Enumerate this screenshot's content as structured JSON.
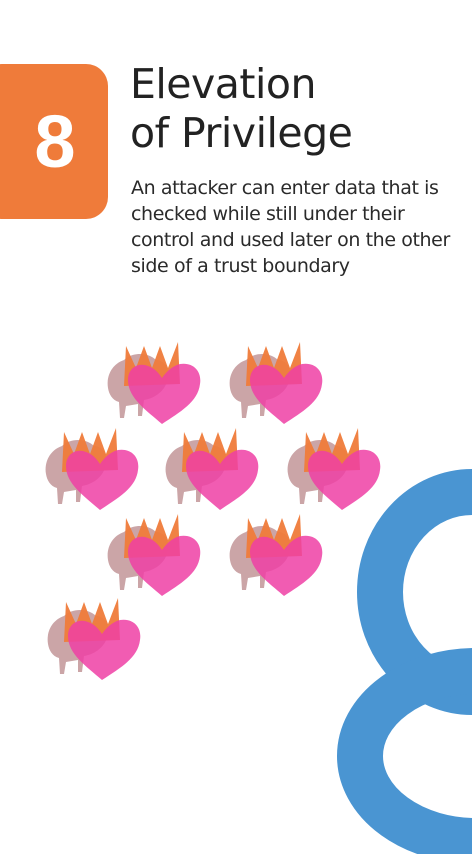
{
  "card": {
    "number": "8",
    "title_line1": "Elevation",
    "title_line2": "of Privilege",
    "description": "An attacker can enter data that is checked while still under their control and used later on the other side of a trust boundary",
    "suit_icon": "crown-bison-heart-icon",
    "suit_icon_count": 8,
    "colors": {
      "badge": "#ef7b3a",
      "big_numeral": "#4a95d2",
      "crown": "#ef7b3a",
      "heart": "#ef3fa5",
      "bison": "#b9878a"
    }
  }
}
